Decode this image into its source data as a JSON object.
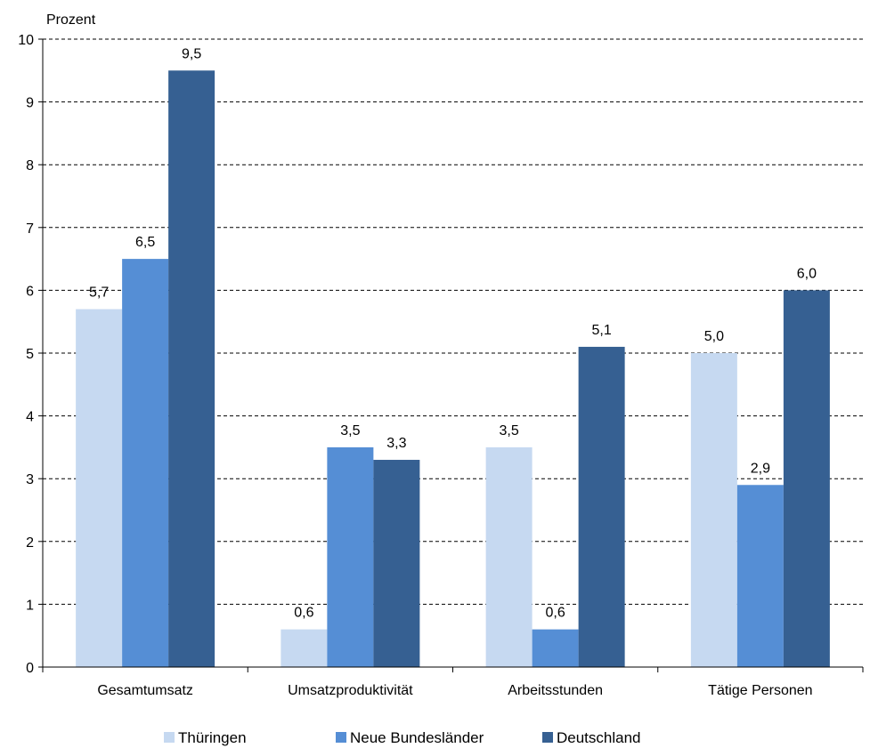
{
  "chart_data": {
    "type": "bar",
    "ylabel": "Prozent",
    "categories": [
      "Gesamtumsatz",
      "Umsatzproduktivität",
      "Arbeitsstunden",
      "Tätige Personen"
    ],
    "series": [
      {
        "name": "Thüringen",
        "color": "#c6d9f1",
        "values": [
          5.7,
          0.6,
          3.5,
          5.0
        ],
        "labels": [
          "5,7",
          "0,6",
          "3,5",
          "5,0"
        ]
      },
      {
        "name": "Neue Bundesländer",
        "color": "#558ed5",
        "values": [
          6.5,
          3.5,
          0.6,
          2.9
        ],
        "labels": [
          "6,5",
          "3,5",
          "0,6",
          "2,9"
        ]
      },
      {
        "name": "Deutschland",
        "color": "#366092",
        "values": [
          9.5,
          3.3,
          5.1,
          6.0
        ],
        "labels": [
          "9,5",
          "3,3",
          "5,1",
          "6,0"
        ]
      }
    ],
    "ylim": [
      0,
      10
    ],
    "yticks": [
      0,
      1,
      2,
      3,
      4,
      5,
      6,
      7,
      8,
      9,
      10
    ],
    "grid": "horizontal dashed",
    "legend": "bottom"
  }
}
